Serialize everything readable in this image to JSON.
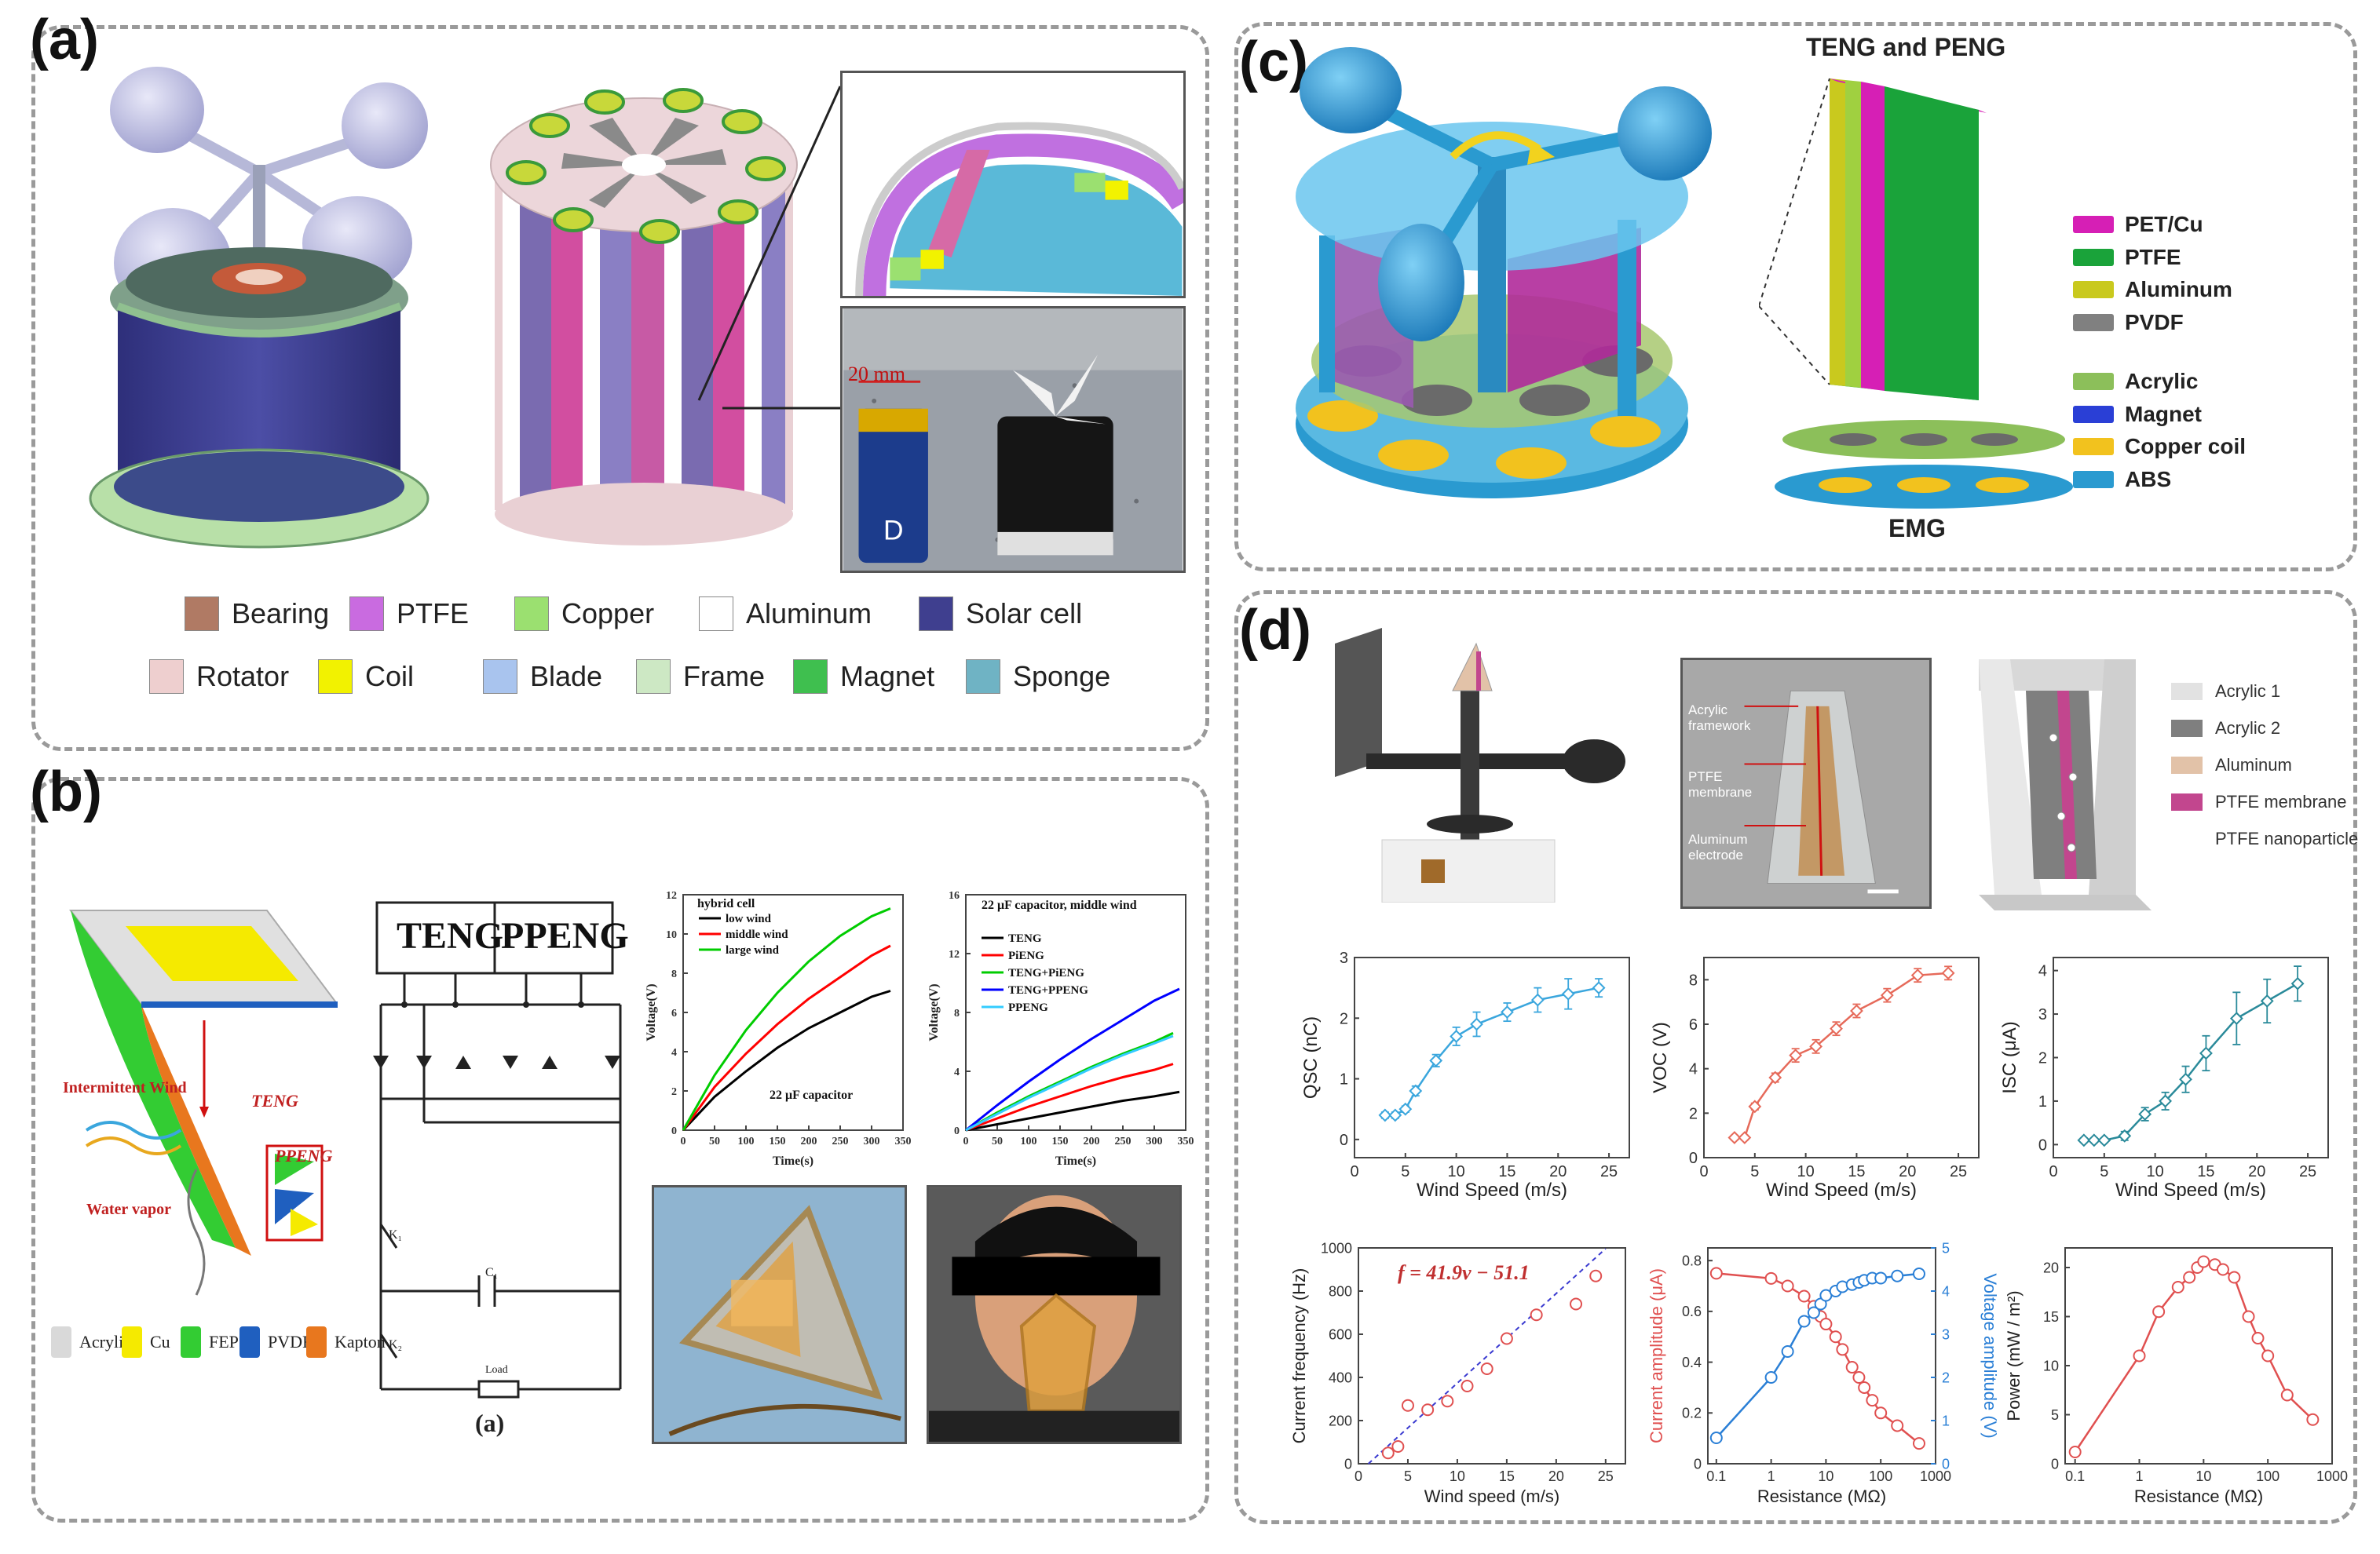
{
  "panels": {
    "a": {
      "letter": "(a)",
      "legend": [
        {
          "label": "Bearing",
          "color": "#b07a64"
        },
        {
          "label": "PTFE",
          "color": "#c96be0"
        },
        {
          "label": "Copper",
          "color": "#9be070"
        },
        {
          "label": "Aluminum",
          "color": "#ffffff"
        },
        {
          "label": "Solar cell",
          "color": "#3f3f8f"
        },
        {
          "label": "Rotator",
          "color": "#eecfcf"
        },
        {
          "label": "Coil",
          "color": "#f2f200"
        },
        {
          "label": "Blade",
          "color": "#a9c4ee"
        },
        {
          "label": "Frame",
          "color": "#cde8c4"
        },
        {
          "label": "Magnet",
          "color": "#3fbf4f"
        },
        {
          "label": "Sponge",
          "color": "#6fb3c4"
        }
      ],
      "scale_bar": "20 mm"
    },
    "b": {
      "letter": "(b)",
      "diagram_labels": {
        "wind": "Intermittent Wind",
        "teng": "TENG",
        "ppeng": "PPENG",
        "vapor": "Water vapor"
      },
      "legend": [
        {
          "label": "Acrylic",
          "color": "#d9d9d9"
        },
        {
          "label": "Cu",
          "color": "#f5ea00"
        },
        {
          "label": "FEP",
          "color": "#33cc33"
        },
        {
          "label": "PVDF",
          "color": "#1f5fbf"
        },
        {
          "label": "Kapton",
          "color": "#e8771e"
        }
      ],
      "circuit": {
        "teng": "TENG",
        "ppeng": "PPENG",
        "k1": "K₁",
        "k2": "K₂",
        "c": "C₁",
        "load": "Load",
        "caption": "(a)"
      }
    },
    "c": {
      "letter": "(c)",
      "header": "TENG and PENG",
      "footer": "EMG",
      "legend": [
        {
          "label": "PET/Cu",
          "color": "#d61fb5"
        },
        {
          "label": "PTFE",
          "color": "#1aa33a"
        },
        {
          "label": "Aluminum",
          "color": "#c9c91e"
        },
        {
          "label": "PVDF",
          "color": "#808080"
        },
        {
          "label": "Acrylic",
          "color": "#8cbf5a"
        },
        {
          "label": "Magnet",
          "color": "#2a3fd6"
        },
        {
          "label": "Copper coil",
          "color": "#f2c21e"
        },
        {
          "label": "ABS",
          "color": "#2a9ad0"
        }
      ]
    },
    "d": {
      "letter": "(d)",
      "photo_labels": [
        "Acrylic framework",
        "PTFE membrane",
        "Aluminum electrode"
      ],
      "legend": [
        {
          "label": "Acrylic  1",
          "color": "#e2e2e2"
        },
        {
          "label": "Acrylic  2",
          "color": "#7f7f7f"
        },
        {
          "label": "Aluminum",
          "color": "#e2c2a8"
        },
        {
          "label": "PTFE membrane",
          "color": "#c2468e"
        },
        {
          "label": "PTFE nanoparticle",
          "color": "#ffffff"
        }
      ]
    }
  },
  "chart_data": [
    {
      "id": "b-hybrid",
      "type": "line",
      "title": "hybrid cell",
      "annotation": "22 μF capacitor",
      "xlabel": "Time(s)",
      "ylabel": "Voltage(V)",
      "xlim": [
        0,
        350
      ],
      "ylim": [
        0,
        12
      ],
      "xticks": [
        0,
        50,
        100,
        150,
        200,
        250,
        300,
        350
      ],
      "yticks": [
        0,
        2,
        4,
        6,
        8,
        10,
        12
      ],
      "series": [
        {
          "name": "low wind",
          "color": "#000000",
          "x": [
            0,
            50,
            100,
            150,
            200,
            250,
            300,
            330
          ],
          "y": [
            0,
            1.7,
            3.0,
            4.2,
            5.2,
            6.0,
            6.8,
            7.1
          ]
        },
        {
          "name": "middle wind",
          "color": "#ff0000",
          "x": [
            0,
            50,
            100,
            150,
            200,
            250,
            300,
            330
          ],
          "y": [
            0,
            2.2,
            3.9,
            5.4,
            6.7,
            7.8,
            8.9,
            9.4
          ]
        },
        {
          "name": "large wind",
          "color": "#00cc00",
          "x": [
            0,
            50,
            100,
            150,
            200,
            250,
            300,
            330
          ],
          "y": [
            0,
            2.8,
            5.1,
            7.0,
            8.6,
            9.9,
            10.9,
            11.3
          ]
        }
      ]
    },
    {
      "id": "b-middle",
      "type": "line",
      "title": "22 μF capacitor, middle wind",
      "xlabel": "Time(s)",
      "ylabel": "Voltage(V)",
      "xlim": [
        0,
        350
      ],
      "ylim": [
        0,
        16
      ],
      "xticks": [
        0,
        50,
        100,
        150,
        200,
        250,
        300,
        350
      ],
      "yticks": [
        0,
        4,
        8,
        12,
        16
      ],
      "series": [
        {
          "name": "TENG",
          "color": "#000000",
          "x": [
            0,
            50,
            100,
            150,
            200,
            250,
            300,
            340
          ],
          "y": [
            0,
            0.4,
            0.8,
            1.2,
            1.6,
            2.0,
            2.3,
            2.6
          ]
        },
        {
          "name": "PiENG",
          "color": "#ff0000",
          "x": [
            0,
            50,
            100,
            150,
            200,
            250,
            300,
            330
          ],
          "y": [
            0,
            0.8,
            1.6,
            2.3,
            3.0,
            3.6,
            4.1,
            4.5
          ]
        },
        {
          "name": "TENG+PiENG",
          "color": "#00cc00",
          "x": [
            0,
            50,
            100,
            150,
            200,
            250,
            300,
            330
          ],
          "y": [
            0,
            1.2,
            2.3,
            3.3,
            4.3,
            5.2,
            6.0,
            6.6
          ]
        },
        {
          "name": "TENG+PPENG",
          "color": "#0000ff",
          "x": [
            0,
            50,
            100,
            150,
            200,
            250,
            300,
            340
          ],
          "y": [
            0,
            1.7,
            3.3,
            4.8,
            6.2,
            7.5,
            8.8,
            9.6
          ]
        },
        {
          "name": "PPENG",
          "color": "#33ccff",
          "x": [
            0,
            50,
            100,
            150,
            200,
            250,
            300,
            330
          ],
          "y": [
            0,
            1.1,
            2.2,
            3.2,
            4.2,
            5.1,
            5.9,
            6.4
          ]
        }
      ]
    },
    {
      "id": "d-qsc",
      "type": "line",
      "ylabel": "QSC (nC)",
      "xlabel": "Wind Speed (m/s)",
      "xlim": [
        0,
        27
      ],
      "ylim": [
        -0.3,
        3
      ],
      "xticks": [
        0,
        5,
        10,
        15,
        20,
        25
      ],
      "yticks": [
        0,
        1,
        2,
        3
      ],
      "series": [
        {
          "color": "#3aa6dd",
          "marker": "diamond",
          "x": [
            3,
            4,
            5,
            6,
            8,
            10,
            12,
            15,
            18,
            21,
            24
          ],
          "y": [
            0.4,
            0.4,
            0.5,
            0.8,
            1.3,
            1.7,
            1.9,
            2.1,
            2.3,
            2.4,
            2.5
          ],
          "err": [
            0.05,
            0.05,
            0.05,
            0.08,
            0.1,
            0.15,
            0.2,
            0.15,
            0.2,
            0.25,
            0.15
          ]
        }
      ]
    },
    {
      "id": "d-voc",
      "type": "line",
      "ylabel": "VOC (V)",
      "xlabel": "Wind Speed (m/s)",
      "xlim": [
        0,
        27
      ],
      "ylim": [
        0,
        9
      ],
      "xticks": [
        0,
        5,
        10,
        15,
        20,
        25
      ],
      "yticks": [
        0,
        2,
        4,
        6,
        8
      ],
      "series": [
        {
          "color": "#e66a5a",
          "marker": "diamond",
          "x": [
            3,
            4,
            5,
            7,
            9,
            11,
            13,
            15,
            18,
            21,
            24
          ],
          "y": [
            0.9,
            0.9,
            2.3,
            3.6,
            4.6,
            5.0,
            5.8,
            6.6,
            7.3,
            8.2,
            8.3
          ],
          "err": [
            0.1,
            0.1,
            0.15,
            0.2,
            0.3,
            0.3,
            0.3,
            0.3,
            0.3,
            0.3,
            0.3
          ]
        }
      ]
    },
    {
      "id": "d-isc",
      "type": "line",
      "ylabel": "ISC (μA)",
      "xlabel": "Wind Speed (m/s)",
      "xlim": [
        0,
        27
      ],
      "ylim": [
        -0.3,
        4.3
      ],
      "xticks": [
        0,
        5,
        10,
        15,
        20,
        25
      ],
      "yticks": [
        0,
        1,
        2,
        3,
        4
      ],
      "series": [
        {
          "color": "#2a8a9a",
          "marker": "diamond",
          "x": [
            3,
            4,
            5,
            7,
            9,
            11,
            13,
            15,
            18,
            21,
            24
          ],
          "y": [
            0.1,
            0.1,
            0.1,
            0.2,
            0.7,
            1.0,
            1.5,
            2.1,
            2.9,
            3.3,
            3.7
          ],
          "err": [
            0.05,
            0.05,
            0.05,
            0.1,
            0.15,
            0.2,
            0.3,
            0.4,
            0.6,
            0.5,
            0.4
          ]
        }
      ]
    },
    {
      "id": "d-freq",
      "type": "scatter",
      "ylabel": "Current frequency (Hz)",
      "xlabel": "Wind speed (m/s)",
      "xlim": [
        0,
        27
      ],
      "ylim": [
        0,
        1000
      ],
      "xticks": [
        0,
        5,
        10,
        15,
        20,
        25
      ],
      "yticks": [
        0,
        200,
        400,
        600,
        800,
        1000
      ],
      "annotation": "f = 41.9v − 51.1",
      "fit": {
        "slope": 41.9,
        "intercept": -51.1
      },
      "series": [
        {
          "color": "#e05050",
          "marker": "circle",
          "x": [
            3,
            4,
            5,
            7,
            9,
            11,
            13,
            15,
            18,
            22,
            24
          ],
          "y": [
            50,
            80,
            270,
            250,
            290,
            360,
            440,
            580,
            690,
            740,
            870
          ]
        }
      ]
    },
    {
      "id": "d-resistance",
      "type": "line",
      "xlabel": "Resistance (MΩ)",
      "ylabel": "Current amplitude (μA)",
      "y2label": "Voltage amplitude (V)",
      "xscale": "log",
      "xlim": [
        0.07,
        1000
      ],
      "ylim": [
        0,
        0.85
      ],
      "y2lim": [
        0,
        5
      ],
      "xticks": [
        0.1,
        1,
        10,
        100,
        1000
      ],
      "xticklabels": [
        "0.1",
        "1",
        "10",
        "100",
        "1000"
      ],
      "yticks": [
        0,
        0.2,
        0.4,
        0.6,
        0.8
      ],
      "y2ticks": [
        0,
        1,
        2,
        3,
        4,
        5
      ],
      "series": [
        {
          "name": "Current amplitude",
          "axis": "left",
          "color": "#e05050",
          "x": [
            0.1,
            1,
            2,
            4,
            6,
            8,
            10,
            15,
            20,
            30,
            40,
            50,
            70,
            100,
            200,
            500
          ],
          "y": [
            0.75,
            0.73,
            0.7,
            0.66,
            0.62,
            0.58,
            0.55,
            0.5,
            0.45,
            0.38,
            0.34,
            0.3,
            0.25,
            0.2,
            0.15,
            0.08
          ]
        },
        {
          "name": "Voltage amplitude",
          "axis": "right",
          "color": "#2a7fd6",
          "x": [
            0.1,
            1,
            2,
            4,
            6,
            8,
            10,
            15,
            20,
            30,
            40,
            50,
            70,
            100,
            200,
            500
          ],
          "y": [
            0.6,
            2.0,
            2.6,
            3.3,
            3.5,
            3.7,
            3.9,
            4.0,
            4.1,
            4.15,
            4.2,
            4.25,
            4.3,
            4.3,
            4.35,
            4.4
          ]
        }
      ]
    },
    {
      "id": "d-power",
      "type": "line",
      "xlabel": "Resistance (MΩ)",
      "ylabel": "Power (mW / m²)",
      "xscale": "log",
      "xlim": [
        0.07,
        1000
      ],
      "ylim": [
        0,
        22
      ],
      "xticks": [
        0.1,
        1,
        10,
        100,
        1000
      ],
      "xticklabels": [
        "0.1",
        "1",
        "10",
        "100",
        "1000"
      ],
      "yticks": [
        0,
        5,
        10,
        15,
        20
      ],
      "series": [
        {
          "color": "#e05050",
          "marker": "circle",
          "x": [
            0.1,
            1,
            2,
            4,
            6,
            8,
            10,
            15,
            20,
            30,
            50,
            70,
            100,
            200,
            500
          ],
          "y": [
            1.2,
            11,
            15.5,
            18,
            19,
            20,
            20.6,
            20.3,
            19.8,
            19,
            15,
            12.8,
            11,
            7,
            4.5
          ]
        }
      ]
    }
  ]
}
